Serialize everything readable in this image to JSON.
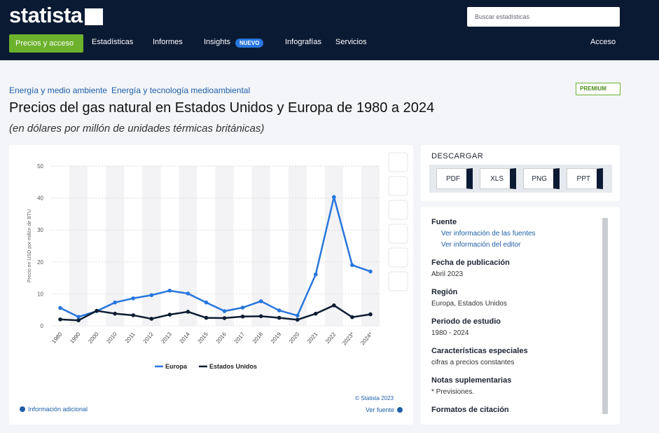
{
  "header": {
    "logo": "statista",
    "search_placeholder": "Buscar estadísticas",
    "nav": [
      "Precios y acceso",
      "Estadísticas",
      "Informes",
      "Insights",
      "Infografías",
      "Servicios"
    ],
    "badge": "NUEVO",
    "login": "Acceso"
  },
  "breadcrumb": [
    "Energía y medio ambiente",
    "Energía y tecnología medioambiental"
  ],
  "premium": "PREMIUM",
  "title": "Precios del gas natural en Estados Unidos y Europa de 1980 a 2024",
  "subtitle": "(en dólares por millón de unidades térmicas británicas)",
  "chart_data": {
    "type": "line",
    "y_label": "Precio en USD por millón de BTU",
    "categories": [
      "1980",
      "1990",
      "2000",
      "2010",
      "2011",
      "2012",
      "2013",
      "2014",
      "2015",
      "2016",
      "2017",
      "2018",
      "2019",
      "2020",
      "2021",
      "2022",
      "2023*",
      "2024*"
    ],
    "series": [
      {
        "name": "Europa",
        "color": "#2876dd",
        "values": [
          5.6,
          2.8,
          4.6,
          7.3,
          8.6,
          9.6,
          11.0,
          10.1,
          7.3,
          4.6,
          5.7,
          7.7,
          4.8,
          3.2,
          16.1,
          40.3,
          19.0,
          17.0
        ]
      },
      {
        "name": "Estados Unidos",
        "color": "#0f1d33",
        "values": [
          2.0,
          1.7,
          4.7,
          3.8,
          3.3,
          2.2,
          3.5,
          4.4,
          2.5,
          2.4,
          2.9,
          3.0,
          2.5,
          1.9,
          3.8,
          6.4,
          2.7,
          3.6
        ]
      }
    ],
    "ylim": [
      0,
      50
    ],
    "yticks": [
      0,
      10,
      20,
      30,
      40,
      50
    ],
    "grid": true,
    "legend": "bottom"
  },
  "chart_footer": {
    "copyright": "© Statista 2023",
    "more_info": "Información adicional",
    "source": "Ver fuente"
  },
  "download": {
    "title": "DESCARGAR",
    "formats": [
      "PDF",
      "XLS",
      "PNG",
      "PPT"
    ]
  },
  "info": [
    {
      "heading": "Fuente",
      "links": [
        "Ver información de las fuentes",
        "Ver información del editor"
      ]
    },
    {
      "heading": "Fecha de publicación",
      "text": "Abril 2023"
    },
    {
      "heading": "Región",
      "text": "Europa, Estados Unidos"
    },
    {
      "heading": "Periodo de estudio",
      "text": "1980 - 2024"
    },
    {
      "heading": "Características especiales",
      "text": "cifras a precios constantes"
    },
    {
      "heading": "Notas suplementarias",
      "text": "* Previsiones."
    },
    {
      "heading": "Formatos de citación"
    }
  ]
}
